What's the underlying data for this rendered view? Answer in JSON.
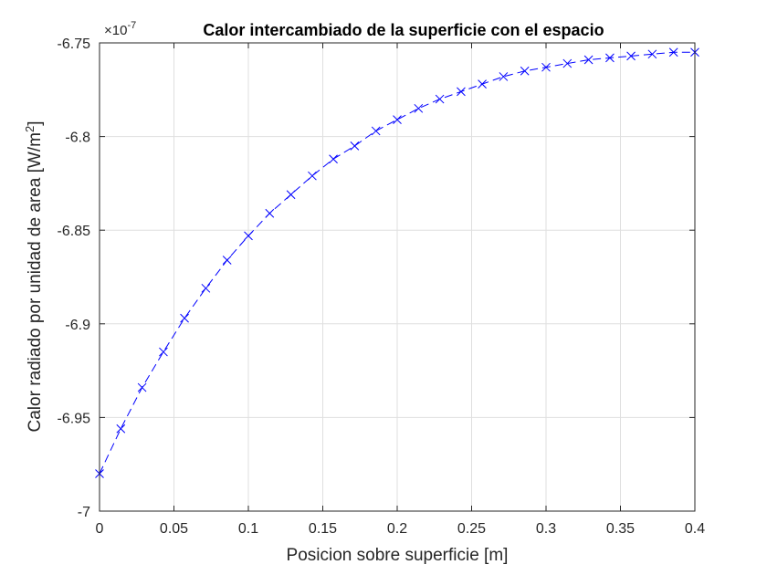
{
  "chart_data": {
    "type": "line",
    "title": "Calor intercambiado de la superficie con el espacio",
    "xlabel": "Posicion sobre superficie [m]",
    "ylabel": "Calor radiado por unidad de area [W/m",
    "ylabel_sup": "2",
    "ylabel_close": "]",
    "y_exponent_prefix": "×10",
    "y_exponent": "-7",
    "xlim": [
      0,
      0.4
    ],
    "ylim": [
      -7.0,
      -6.75
    ],
    "xticks": [
      0,
      0.05,
      0.1,
      0.15,
      0.2,
      0.25,
      0.3,
      0.35,
      0.4
    ],
    "xtick_labels": [
      "0",
      "0.05",
      "0.1",
      "0.15",
      "0.2",
      "0.25",
      "0.3",
      "0.35",
      "0.4"
    ],
    "yticks": [
      -7.0,
      -6.95,
      -6.9,
      -6.85,
      -6.8,
      -6.75
    ],
    "ytick_labels": [
      "-7",
      "-6.95",
      "-6.9",
      "-6.85",
      "-6.8",
      "-6.75"
    ],
    "grid": true,
    "line_style": "dashed",
    "marker": "x",
    "color": "#0000ff",
    "series": [
      {
        "x": [
          0.0,
          0.0143,
          0.0286,
          0.0429,
          0.0571,
          0.0714,
          0.0857,
          0.1,
          0.1143,
          0.1286,
          0.1429,
          0.1571,
          0.1714,
          0.1857,
          0.2,
          0.2143,
          0.2286,
          0.2429,
          0.2571,
          0.2714,
          0.2857,
          0.3,
          0.3143,
          0.3286,
          0.3429,
          0.3571,
          0.3714,
          0.3857,
          0.4
        ],
        "values": [
          -6.98,
          -6.956,
          -6.934,
          -6.915,
          -6.897,
          -6.881,
          -6.866,
          -6.853,
          -6.841,
          -6.831,
          -6.821,
          -6.812,
          -6.805,
          -6.797,
          -6.791,
          -6.785,
          -6.78,
          -6.776,
          -6.772,
          -6.768,
          -6.765,
          -6.763,
          -6.761,
          -6.759,
          -6.758,
          -6.757,
          -6.756,
          -6.755,
          -6.755
        ]
      }
    ]
  }
}
